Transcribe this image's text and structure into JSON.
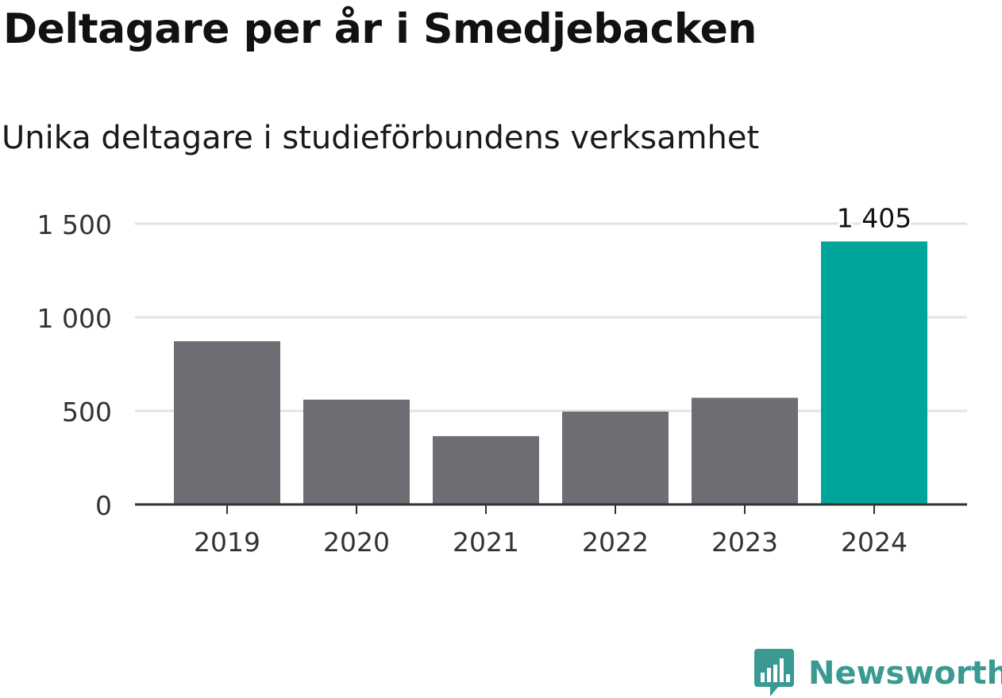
{
  "header": {
    "title": "Deltagare per år i Smedjebacken",
    "subtitle": "Unika deltagare i studieförbundens verksamhet"
  },
  "chart_data": {
    "type": "bar",
    "categories": [
      "2019",
      "2020",
      "2021",
      "2022",
      "2023",
      "2024"
    ],
    "values": [
      872,
      560,
      365,
      496,
      570,
      1405
    ],
    "ylim": [
      0,
      1500
    ],
    "yticks": [
      0,
      500,
      1000,
      1500
    ],
    "ytick_labels": [
      "0",
      "500",
      "1 000",
      "1 500"
    ],
    "data_labels": [
      null,
      null,
      null,
      null,
      null,
      "1 405"
    ],
    "grid": true,
    "colors": {
      "default_bar": "#6e6d73",
      "highlight_bar": "#00a59b",
      "grid": "#e3e3e3",
      "axis": "#333333"
    },
    "highlight_index": 5,
    "xlabel": "",
    "ylabel": ""
  },
  "branding": {
    "logo_text": "Newsworthy",
    "logo_icon": "newsworthy-chart-icon",
    "logo_color": "#3a9a92"
  }
}
